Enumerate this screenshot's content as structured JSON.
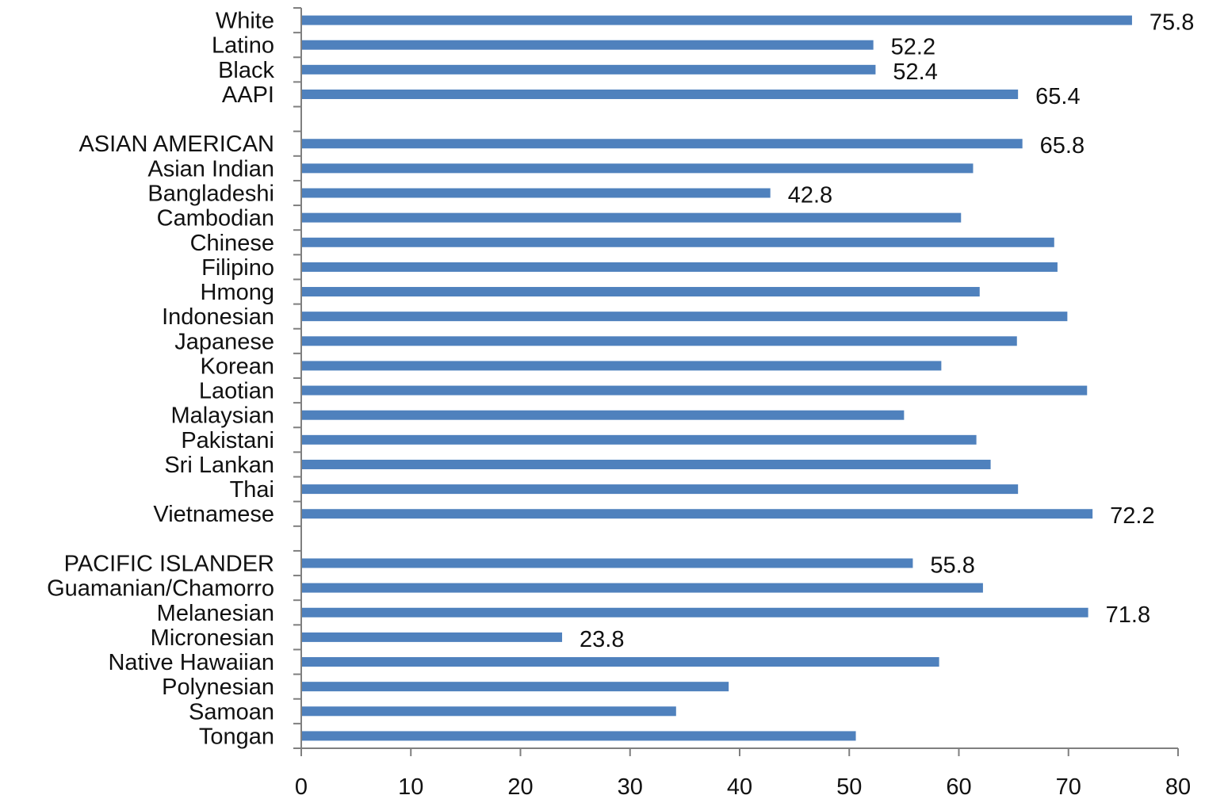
{
  "chart_data": {
    "type": "bar",
    "orientation": "horizontal",
    "categories": [
      "White",
      "Latino",
      "Black",
      "AAPI",
      "",
      "ASIAN AMERICAN",
      "Asian Indian",
      "Bangladeshi",
      "Cambodian",
      "Chinese",
      "Filipino",
      "Hmong",
      "Indonesian",
      "Japanese",
      "Korean",
      "Laotian",
      "Malaysian",
      "Pakistani",
      "Sri Lankan",
      "Thai",
      "Vietnamese",
      "",
      "PACIFIC ISLANDER",
      "Guamanian/Chamorro",
      "Melanesian",
      "Micronesian",
      "Native Hawaiian",
      "Polynesian",
      "Samoan",
      "Tongan"
    ],
    "values": [
      75.8,
      52.2,
      52.4,
      65.4,
      null,
      65.8,
      61.3,
      42.8,
      60.2,
      68.7,
      69.0,
      61.9,
      69.9,
      65.3,
      58.4,
      71.7,
      55.0,
      61.6,
      62.9,
      65.4,
      72.2,
      null,
      55.8,
      62.2,
      71.8,
      23.8,
      58.2,
      39.0,
      34.2,
      50.6
    ],
    "data_labels": [
      "75.8",
      "52.2",
      "52.4",
      "65.4",
      "",
      "65.8",
      "",
      "42.8",
      "",
      "",
      "",
      "",
      "",
      "",
      "",
      "",
      "",
      "",
      "",
      "",
      "72.2",
      "",
      "55.8",
      "",
      "71.8",
      "23.8",
      "",
      "",
      "",
      ""
    ],
    "xlim": [
      0,
      80
    ],
    "x_ticks": [
      "0",
      "10",
      "20",
      "30",
      "40",
      "50",
      "60",
      "70",
      "80"
    ],
    "bar_color": "#4F81BD",
    "grid": false,
    "legend": "none",
    "title": "",
    "xlabel": "",
    "ylabel": ""
  }
}
